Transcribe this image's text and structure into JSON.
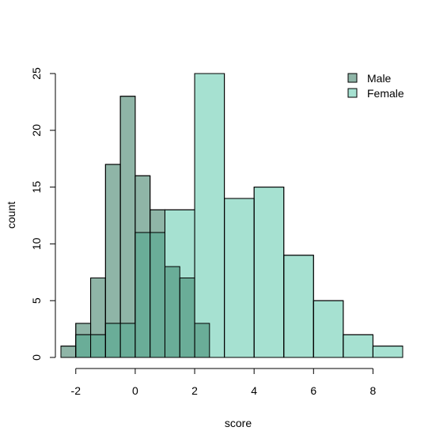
{
  "chart_data": {
    "type": "bar",
    "subtype": "overlaid-histogram",
    "xlabel": "score",
    "ylabel": "count",
    "xlim": [
      -2.5,
      9
    ],
    "ylim": [
      0,
      25
    ],
    "x_ticks": [
      -2,
      0,
      2,
      4,
      6,
      8
    ],
    "y_ticks": [
      0,
      5,
      10,
      15,
      20,
      25
    ],
    "grid": false,
    "legend_position": "top-right",
    "series": [
      {
        "name": "Male",
        "color": "#8fb5a7",
        "bins": [
          {
            "x0": -2.5,
            "x1": -2.0,
            "count": 1
          },
          {
            "x0": -2.0,
            "x1": -1.5,
            "count": 3
          },
          {
            "x0": -1.5,
            "x1": -1.0,
            "count": 7
          },
          {
            "x0": -1.0,
            "x1": -0.5,
            "count": 17
          },
          {
            "x0": -0.5,
            "x1": 0.0,
            "count": 23
          },
          {
            "x0": 0.0,
            "x1": 0.5,
            "count": 16
          },
          {
            "x0": 0.5,
            "x1": 1.0,
            "count": 13
          },
          {
            "x0": 1.0,
            "x1": 1.5,
            "count": 8
          },
          {
            "x0": 1.5,
            "x1": 2.0,
            "count": 7
          },
          {
            "x0": 2.0,
            "x1": 2.5,
            "count": 3
          }
        ]
      },
      {
        "name": "Female",
        "color": "#a6e1d1",
        "bins": [
          {
            "x0": -2.0,
            "x1": -1.0,
            "count": 2
          },
          {
            "x0": -1.0,
            "x1": 0.0,
            "count": 3
          },
          {
            "x0": 0.0,
            "x1": 1.0,
            "count": 11
          },
          {
            "x0": 1.0,
            "x1": 2.0,
            "count": 13
          },
          {
            "x0": 2.0,
            "x1": 3.0,
            "count": 25
          },
          {
            "x0": 3.0,
            "x1": 4.0,
            "count": 14
          },
          {
            "x0": 4.0,
            "x1": 5.0,
            "count": 15
          },
          {
            "x0": 5.0,
            "x1": 6.0,
            "count": 9
          },
          {
            "x0": 6.0,
            "x1": 7.0,
            "count": 5
          },
          {
            "x0": 7.0,
            "x1": 8.0,
            "count": 2
          },
          {
            "x0": 8.0,
            "x1": 9.0,
            "count": 1
          }
        ]
      }
    ],
    "overlap_color": "#6aad98"
  }
}
